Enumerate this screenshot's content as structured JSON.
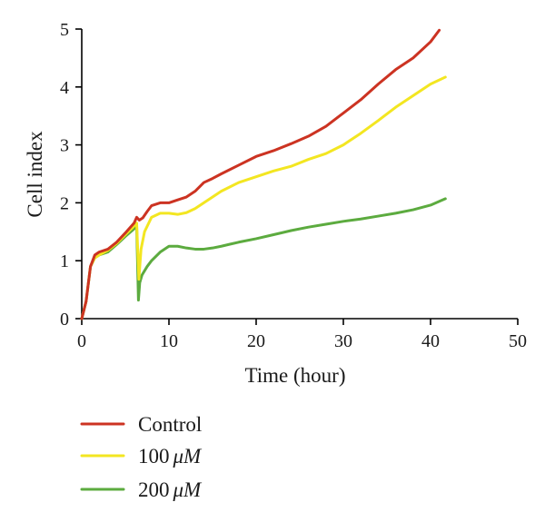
{
  "chart_data": {
    "type": "line",
    "title": "",
    "xlabel": "Time (hour)",
    "ylabel": "Cell index",
    "xlim": [
      0,
      50
    ],
    "ylim": [
      0,
      5
    ],
    "xticks": [
      0,
      10,
      20,
      30,
      40,
      50
    ],
    "yticks": [
      0,
      1,
      2,
      3,
      4,
      5
    ],
    "grid": false,
    "legend_position": "bottom-left",
    "series": [
      {
        "name": "Control",
        "unit": "",
        "color": "#cc3322",
        "x": [
          0,
          0.5,
          1,
          1.5,
          2,
          3,
          4,
          5,
          6,
          6.3,
          6.6,
          7,
          7.5,
          8,
          9,
          10,
          11,
          12,
          13,
          14,
          15,
          16,
          18,
          20,
          22,
          24,
          26,
          28,
          30,
          32,
          34,
          36,
          38,
          40,
          41
        ],
        "y": [
          0,
          0.3,
          0.9,
          1.1,
          1.15,
          1.2,
          1.32,
          1.48,
          1.65,
          1.75,
          1.7,
          1.74,
          1.85,
          1.95,
          2.0,
          2.0,
          2.05,
          2.1,
          2.2,
          2.35,
          2.42,
          2.5,
          2.65,
          2.8,
          2.9,
          3.02,
          3.15,
          3.32,
          3.55,
          3.78,
          4.05,
          4.3,
          4.5,
          4.78,
          4.98
        ]
      },
      {
        "name": "100",
        "unit": "μM",
        "color": "#f3e621",
        "x": [
          0,
          0.5,
          1,
          1.5,
          2,
          3,
          4,
          5,
          6,
          6.3,
          6.55,
          6.8,
          7.2,
          8,
          9,
          10,
          11,
          12,
          13,
          14,
          15,
          16,
          18,
          20,
          22,
          24,
          26,
          28,
          30,
          32,
          34,
          36,
          38,
          40,
          41.7
        ],
        "y": [
          0,
          0.3,
          0.9,
          1.05,
          1.1,
          1.18,
          1.3,
          1.45,
          1.6,
          1.65,
          0.68,
          1.2,
          1.5,
          1.75,
          1.82,
          1.82,
          1.8,
          1.83,
          1.9,
          2.0,
          2.1,
          2.2,
          2.35,
          2.45,
          2.55,
          2.63,
          2.75,
          2.85,
          3.0,
          3.2,
          3.42,
          3.65,
          3.85,
          4.05,
          4.17
        ]
      },
      {
        "name": "200",
        "unit": "μM",
        "color": "#5cab3f",
        "x": [
          0,
          0.5,
          1,
          1.5,
          2,
          3,
          4,
          5,
          6,
          6.3,
          6.5,
          6.65,
          6.9,
          7.5,
          8,
          9,
          10,
          11,
          12,
          13,
          14,
          15,
          16,
          18,
          20,
          22,
          24,
          26,
          28,
          30,
          32,
          34,
          36,
          38,
          40,
          41.7
        ],
        "y": [
          0,
          0.3,
          0.9,
          1.05,
          1.1,
          1.15,
          1.28,
          1.42,
          1.55,
          1.6,
          0.32,
          0.62,
          0.75,
          0.9,
          1.0,
          1.15,
          1.25,
          1.25,
          1.22,
          1.2,
          1.2,
          1.22,
          1.25,
          1.32,
          1.38,
          1.45,
          1.52,
          1.58,
          1.63,
          1.68,
          1.72,
          1.77,
          1.82,
          1.88,
          1.96,
          2.07
        ]
      }
    ]
  }
}
